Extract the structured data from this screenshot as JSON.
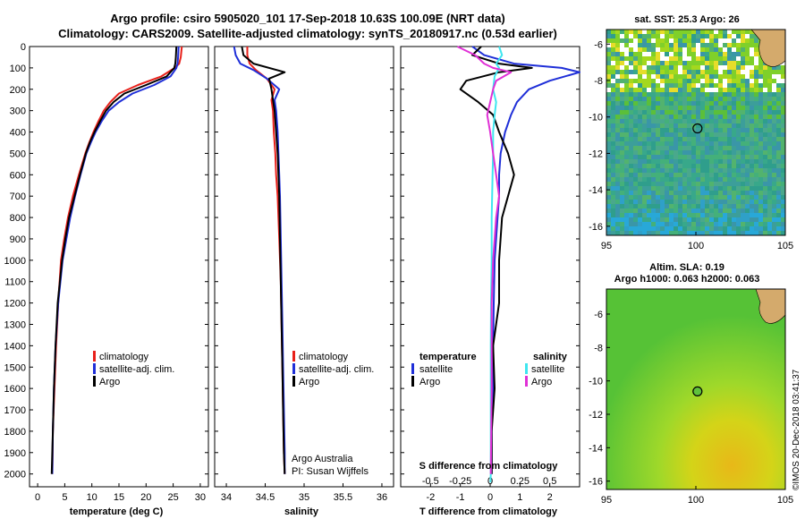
{
  "title_line1": "Argo profile: csiro 5905020_101 17-Sep-2018 10.63S 100.09E (NRT data)",
  "title_line2": "Climatology: CARS2009. Satellite-adjusted climatology: synTS_20180917.nc (0.53d earlier)",
  "colors": {
    "argo": "#000000",
    "climatology": "#e8201a",
    "satellite_adj": "#1f2fd8",
    "salinity_satellite": "#3fe6ef",
    "salinity_argo": "#e030d6"
  },
  "chart_data": [
    {
      "type": "line",
      "name": "temperature-profile",
      "xlabel": "temperature (deg C)",
      "ylabel": "",
      "xlim": [
        -1.5,
        31.5
      ],
      "ylim": [
        2060,
        0
      ],
      "y_inverted": true,
      "xticks": [
        "0",
        "5",
        "10",
        "15",
        "20",
        "25",
        "30"
      ],
      "yticks": [
        "0",
        "100",
        "200",
        "300",
        "400",
        "500",
        "600",
        "700",
        "800",
        "900",
        "1000",
        "1100",
        "1200",
        "1300",
        "1400",
        "1500",
        "1600",
        "1700",
        "1800",
        "1900",
        "2000"
      ],
      "legend": [
        "climatology",
        "satellite-adj. clim.",
        "Argo"
      ],
      "legend_position": "lower-right",
      "series": [
        {
          "name": "climatology",
          "color": "#e8201a",
          "x": [
            26.6,
            26.4,
            26.1,
            25.3,
            22.8,
            18.5,
            15.0,
            13.4,
            12.2,
            11.2,
            10.3,
            9.5,
            8.8,
            7.6,
            6.5,
            5.6,
            4.9,
            4.3,
            3.8,
            3.4,
            3.1,
            2.8,
            2.7
          ],
          "y": [
            0,
            50,
            80,
            100,
            140,
            180,
            220,
            260,
            300,
            350,
            400,
            450,
            500,
            600,
            700,
            800,
            900,
            1000,
            1200,
            1400,
            1600,
            1800,
            2000
          ]
        },
        {
          "name": "satellite-adj. clim.",
          "color": "#1f2fd8",
          "x": [
            26.0,
            25.9,
            25.8,
            25.6,
            24.5,
            21.5,
            17.5,
            15.0,
            13.1,
            11.8,
            10.7,
            9.8,
            9.0,
            7.9,
            6.9,
            6.0,
            5.3,
            4.6,
            3.8,
            3.3,
            3.0,
            2.8,
            2.7
          ],
          "y": [
            0,
            50,
            80,
            100,
            140,
            180,
            220,
            260,
            300,
            350,
            400,
            450,
            500,
            600,
            700,
            800,
            900,
            1000,
            1200,
            1400,
            1600,
            1800,
            2000
          ]
        },
        {
          "name": "Argo",
          "color": "#000000",
          "x": [
            25.6,
            25.5,
            25.4,
            25.2,
            23.8,
            20.0,
            16.0,
            14.0,
            12.6,
            11.5,
            10.5,
            9.6,
            8.9,
            7.8,
            6.8,
            5.8,
            5.1,
            4.5,
            3.7,
            3.3,
            3.0,
            2.8,
            2.6
          ],
          "y": [
            0,
            50,
            80,
            100,
            140,
            180,
            220,
            260,
            300,
            350,
            400,
            450,
            500,
            600,
            700,
            800,
            900,
            1000,
            1200,
            1400,
            1600,
            1800,
            2000
          ]
        }
      ]
    },
    {
      "type": "line",
      "name": "salinity-profile",
      "xlabel": "salinity",
      "xlim": [
        33.85,
        36.15
      ],
      "ylim": [
        2060,
        0
      ],
      "y_inverted": true,
      "xticks": [
        "34",
        "34.5",
        "35",
        "35.5",
        "36"
      ],
      "legend": [
        "climatology",
        "satellite-adj. clim.",
        "Argo"
      ],
      "legend_position": "lower-right",
      "annotation": [
        "Argo Australia",
        "PI: Susan Wijffels"
      ],
      "series": [
        {
          "name": "climatology",
          "color": "#e8201a",
          "x": [
            34.27,
            34.27,
            34.3,
            34.38,
            34.52,
            34.62,
            34.58,
            34.6,
            34.61,
            34.63,
            34.64,
            34.66,
            34.68,
            34.7,
            34.71,
            34.72,
            34.73,
            34.74,
            34.75
          ],
          "y": [
            0,
            40,
            80,
            110,
            150,
            200,
            250,
            300,
            400,
            500,
            600,
            700,
            900,
            1100,
            1300,
            1500,
            1700,
            1900,
            2000
          ]
        },
        {
          "name": "satellite-adj. clim.",
          "color": "#1f2fd8",
          "x": [
            34.1,
            34.12,
            34.18,
            34.35,
            34.52,
            34.68,
            34.62,
            34.64,
            34.66,
            34.67,
            34.68,
            34.69,
            34.7,
            34.71,
            34.72,
            34.73,
            34.74,
            34.75,
            34.75
          ],
          "y": [
            0,
            40,
            80,
            110,
            150,
            200,
            250,
            300,
            400,
            500,
            600,
            700,
            900,
            1100,
            1300,
            1500,
            1700,
            1900,
            2000
          ]
        },
        {
          "name": "Argo",
          "color": "#000000",
          "x": [
            34.2,
            34.22,
            34.35,
            34.75,
            34.55,
            34.58,
            34.6,
            34.62,
            34.64,
            34.66,
            34.67,
            34.68,
            34.69,
            34.7,
            34.71,
            34.72,
            34.73,
            34.74,
            34.75
          ],
          "y": [
            0,
            40,
            80,
            120,
            150,
            200,
            250,
            300,
            400,
            500,
            600,
            700,
            900,
            1100,
            1300,
            1500,
            1700,
            1900,
            2000
          ]
        }
      ]
    },
    {
      "type": "line",
      "name": "difference-profile",
      "xlabel": "T difference from climatology",
      "xlabel2": "S difference from climatology",
      "xlim": [
        -3.0,
        3.0
      ],
      "ylim": [
        2060,
        0
      ],
      "y_inverted": true,
      "xticks": [
        "-2",
        "-1",
        "0",
        "1",
        "2"
      ],
      "xticks2": [
        "-0.5",
        "-0.25",
        "0",
        "0.25",
        "0.5"
      ],
      "legend_left_title": "temperature",
      "legend_right_title": "salinity",
      "legend_left": [
        "satellite",
        "Argo"
      ],
      "legend_right": [
        "satellite",
        "Argo"
      ],
      "series": [
        {
          "name": "temperature satellite",
          "color": "#1f2fd8",
          "x": [
            -0.6,
            -0.2,
            0.8,
            2.4,
            3.0,
            2.0,
            1.3,
            0.9,
            0.7,
            0.5,
            0.35,
            0.3,
            0.3,
            0.25,
            0.15,
            0.12,
            0.1,
            0.1,
            0.05,
            0.05
          ],
          "y": [
            0,
            40,
            80,
            100,
            120,
            160,
            200,
            260,
            320,
            400,
            500,
            600,
            700,
            800,
            1000,
            1200,
            1400,
            1600,
            1800,
            2000
          ]
        },
        {
          "name": "temperature Argo",
          "color": "#000000",
          "x": [
            -0.3,
            -0.6,
            0.3,
            1.4,
            0.3,
            -0.8,
            -1.0,
            -0.4,
            0.1,
            0.3,
            0.6,
            0.8,
            0.6,
            0.4,
            0.3,
            0.3,
            0.1,
            0.15,
            0.05,
            0.05
          ],
          "y": [
            0,
            40,
            80,
            100,
            120,
            160,
            200,
            260,
            320,
            400,
            500,
            600,
            700,
            800,
            1000,
            1200,
            1400,
            1600,
            1800,
            2000
          ]
        },
        {
          "name": "salinity satellite",
          "color": "#3fe6ef",
          "x": [
            0.3,
            0.4,
            0.2,
            0.3,
            0.15,
            0.1,
            0.2,
            0.15,
            0.1,
            0.1,
            0.08,
            0.05,
            0.05,
            0.03,
            0.02,
            0.02,
            0.02,
            0.02,
            0.01
          ],
          "y": [
            0,
            40,
            80,
            100,
            140,
            200,
            260,
            320,
            400,
            500,
            600,
            800,
            1000,
            1200,
            1400,
            1600,
            1800,
            2000,
            2040
          ]
        },
        {
          "name": "salinity Argo",
          "color": "#e030d6",
          "x": [
            -1.1,
            -0.5,
            -0.2,
            0.1,
            0.7,
            0.2,
            0.1,
            0.0,
            -0.1,
            0.0,
            0.1,
            0.2,
            0.3,
            0.2,
            0.1,
            0.05,
            0.05,
            0.05,
            0.02
          ],
          "y": [
            0,
            40,
            80,
            100,
            120,
            160,
            200,
            260,
            320,
            400,
            500,
            600,
            700,
            800,
            1000,
            1200,
            1400,
            1600,
            2000
          ]
        }
      ]
    },
    {
      "type": "heatmap",
      "name": "sst-map",
      "title": "sat. SST: 25.3 Argo: 26",
      "xlim": [
        95,
        105
      ],
      "ylim": [
        -16.5,
        -5.2
      ],
      "xticks": [
        "95",
        "100",
        "105"
      ],
      "yticks": [
        "-6",
        "-8",
        "-10",
        "-12",
        "-14",
        "-16"
      ],
      "argo_position": [
        100.09,
        -10.63
      ]
    },
    {
      "type": "heatmap",
      "name": "sla-map",
      "title": "Altim. SLA: 0.19",
      "subtitle": "Argo h1000: 0.063 h2000: 0.063",
      "xlim": [
        95,
        105
      ],
      "ylim": [
        -16.5,
        -4.5
      ],
      "xticks": [
        "95",
        "100",
        "105"
      ],
      "yticks": [
        "-6",
        "-8",
        "-10",
        "-12",
        "-14",
        "-16"
      ],
      "argo_position": [
        100.09,
        -10.63
      ]
    }
  ],
  "credit": "©IMOS 20-Dec-2018 03:41:37"
}
